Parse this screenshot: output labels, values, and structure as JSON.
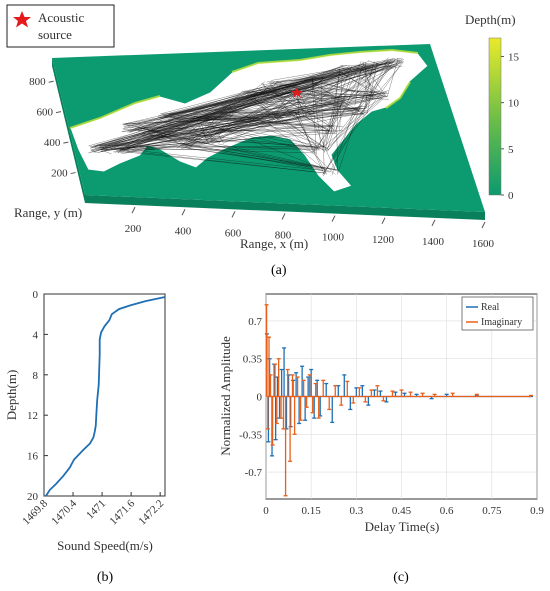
{
  "panels": [
    {
      "id": "a",
      "panel_label": "(a)",
      "chart_data": {
        "type": "heatmap",
        "title": "",
        "xlabel": "Range, x (m)",
        "ylabel": "Range, y (m)",
        "x_ticks": [
          "200",
          "400",
          "600",
          "800",
          "1000",
          "1200",
          "1400",
          "1600"
        ],
        "y_ticks": [
          "200",
          "400",
          "600",
          "800"
        ],
        "xlim": [
          0,
          1600
        ],
        "ylim": [
          0,
          900
        ],
        "colorbar": {
          "label": "Depth(m)",
          "range": [
            0,
            17
          ],
          "ticks": [
            "0",
            "5",
            "10",
            "15"
          ],
          "colors": [
            "#0b9a6f",
            "#66bb4a",
            "#e9ea2a"
          ]
        },
        "legend": [
          {
            "label": "Acoustic\nsource",
            "marker": "red-star",
            "color": "#e41a1c"
          }
        ],
        "legend_placement": "top-left",
        "annotations": [
          "Acoustic source position (red marker)"
        ]
      }
    },
    {
      "id": "b",
      "panel_label": "(b)",
      "chart_data": {
        "type": "line",
        "title": "",
        "xlabel": "Sound Speed(m/s)",
        "ylabel": "Depth(m)",
        "x_ticks": [
          "1469.8",
          "1470.4",
          "1471",
          "1471.6",
          "1472.2"
        ],
        "y_ticks": [
          "0",
          "4",
          "8",
          "12",
          "16",
          "20"
        ],
        "xlim": [
          1469.8,
          1472.3
        ],
        "ylim": [
          20,
          0
        ],
        "series": [
          {
            "color": "#1f6fb4",
            "x": [
              1472.3,
              1471.9,
              1471.6,
              1471.35,
              1471.2,
              1471.15,
              1471.05,
              1470.98,
              1470.95,
              1470.95,
              1470.94,
              1470.93,
              1470.9,
              1470.88,
              1470.87,
              1470.85,
              1470.82,
              1470.75,
              1470.62,
              1470.52,
              1470.42,
              1470.33,
              1470.2,
              1470.05,
              1469.92,
              1469.84
            ],
            "y": [
              0.3,
              0.7,
              1.1,
              1.5,
              2.0,
              2.6,
              3.2,
              3.8,
              4.5,
              6,
              7.5,
              9,
              10.5,
              12,
              13,
              13.6,
              14.2,
              14.8,
              15.4,
              15.9,
              16.4,
              17.2,
              18.0,
              18.8,
              19.4,
              20
            ]
          }
        ]
      }
    },
    {
      "id": "c",
      "panel_label": "(c)",
      "chart_data": {
        "type": "line",
        "title": "",
        "xlabel": "Delay Time(s)",
        "ylabel": "Normalized Amplitude",
        "x_ticks": [
          "0",
          "0.15",
          "0.3",
          "0.45",
          "0.6",
          "0.75",
          "0.9"
        ],
        "y_ticks": [
          "-0.7",
          "-0.35",
          "0",
          "0.35",
          "0.7"
        ],
        "xlim": [
          0,
          0.9
        ],
        "ylim": [
          -0.95,
          0.95
        ],
        "grid": true,
        "legend_placement": "top-right",
        "series": [
          {
            "name": "Real",
            "color": "#1f6fb4",
            "x": [
              0.003,
              0.008,
              0.012,
              0.02,
              0.027,
              0.032,
              0.038,
              0.045,
              0.052,
              0.06,
              0.068,
              0.075,
              0.082,
              0.09,
              0.1,
              0.11,
              0.12,
              0.13,
              0.14,
              0.15,
              0.16,
              0.17,
              0.18,
              0.2,
              0.22,
              0.24,
              0.26,
              0.28,
              0.3,
              0.32,
              0.34,
              0.36,
              0.38,
              0.4,
              0.43,
              0.46,
              0.5,
              0.55,
              0.6,
              0.7,
              0.88
            ],
            "y": [
              0.58,
              -0.42,
              0.35,
              -0.55,
              0.3,
              -0.4,
              0.18,
              -0.2,
              0.25,
              0.45,
              -0.3,
              0.2,
              -0.28,
              0.15,
              0.22,
              -0.25,
              0.28,
              -0.22,
              0.18,
              0.25,
              -0.2,
              0.15,
              -0.18,
              0.12,
              -0.24,
              0.1,
              0.2,
              -0.12,
              0.08,
              0.1,
              -0.08,
              0.06,
              0.05,
              -0.05,
              0.04,
              0.03,
              0.02,
              -0.02,
              0.02,
              0.01,
              0.0
            ]
          },
          {
            "name": "Imaginary",
            "color": "#e8601c",
            "x": [
              0.002,
              0.006,
              0.01,
              0.015,
              0.022,
              0.03,
              0.036,
              0.042,
              0.05,
              0.058,
              0.065,
              0.072,
              0.08,
              0.088,
              0.095,
              0.105,
              0.115,
              0.125,
              0.135,
              0.145,
              0.155,
              0.165,
              0.175,
              0.19,
              0.21,
              0.23,
              0.25,
              0.27,
              0.29,
              0.31,
              0.33,
              0.35,
              0.37,
              0.39,
              0.42,
              0.45,
              0.48,
              0.52,
              0.56,
              0.62,
              0.7,
              0.88
            ],
            "y": [
              0.85,
              -0.3,
              0.55,
              0.2,
              -0.45,
              0.3,
              -0.25,
              0.35,
              -0.2,
              -0.3,
              -0.92,
              0.25,
              -0.6,
              0.2,
              -0.35,
              0.18,
              -0.22,
              0.15,
              -0.1,
              0.2,
              -0.15,
              0.12,
              -0.2,
              0.15,
              -0.12,
              0.1,
              -0.08,
              0.14,
              -0.06,
              0.08,
              -0.05,
              0.06,
              0.1,
              -0.04,
              0.05,
              0.06,
              0.04,
              0.03,
              0.02,
              0.03,
              0.02,
              0.01
            ]
          }
        ]
      }
    }
  ]
}
